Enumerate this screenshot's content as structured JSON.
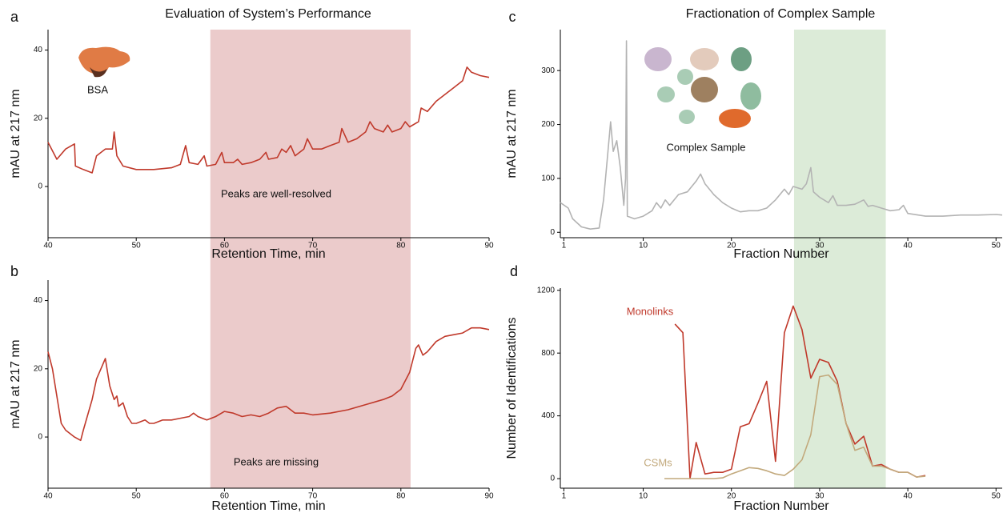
{
  "chart_data": [
    {
      "type": "line",
      "panel_label": "a",
      "title": "Evaluation of System’s Performance",
      "x_label": "Retention Time, min",
      "y_label": "mAU at 217 nm",
      "xlim": [
        40,
        90
      ],
      "xticks": [
        40,
        50,
        60,
        70,
        80,
        90
      ],
      "ylim": [
        -15,
        46
      ],
      "yticks": [
        0,
        20,
        40
      ],
      "highlight": [
        58.4,
        81.1
      ],
      "highlight_color": "#ebcbcb",
      "annotations": [
        "BSA",
        "Peaks are well-resolved"
      ],
      "series": [
        {
          "color": "#c0392b",
          "x": [
            40,
            41,
            42,
            43,
            43.1,
            44,
            45,
            45.5,
            46.5,
            47.3,
            47.5,
            47.8,
            48.5,
            50,
            52,
            54,
            55,
            55.6,
            56,
            57,
            57.7,
            58,
            59,
            59.7,
            60,
            61,
            61.5,
            62,
            63,
            64,
            64.7,
            65,
            66,
            66.5,
            67,
            67.5,
            68,
            69,
            69.4,
            70,
            71,
            72,
            73,
            73.3,
            74,
            75,
            76,
            76.5,
            77,
            78,
            78.5,
            79,
            80,
            80.5,
            81,
            82,
            82.3,
            83,
            84,
            85,
            86,
            87,
            87.5,
            88,
            89,
            90
          ],
          "values": [
            13,
            8,
            11,
            12.5,
            6,
            5,
            4,
            9,
            11,
            11,
            16,
            9,
            6,
            5,
            5,
            5.5,
            6.5,
            12,
            7,
            6.5,
            9,
            6,
            6.5,
            10,
            7,
            7,
            8,
            6.5,
            7,
            8,
            10,
            8,
            8.5,
            11,
            10,
            12,
            9,
            11,
            14,
            11,
            11,
            12,
            13,
            17,
            13,
            14,
            16,
            19,
            17,
            16,
            18,
            16,
            17,
            19,
            17.5,
            19,
            23,
            22,
            25,
            27,
            29,
            31,
            35,
            33.5,
            32.5,
            32
          ]
        }
      ]
    },
    {
      "type": "line",
      "panel_label": "b",
      "x_label": "Retention Time, min",
      "y_label": "mAU at 217 nm",
      "xlim": [
        40,
        90
      ],
      "xticks": [
        40,
        50,
        60,
        70,
        80,
        90
      ],
      "ylim": [
        -15,
        46
      ],
      "yticks": [
        0,
        20,
        40
      ],
      "highlight": [
        58.4,
        81.1
      ],
      "highlight_color": "#ebcbcb",
      "annotations": [
        "Peaks are missing"
      ],
      "series": [
        {
          "color": "#c0392b",
          "x": [
            40,
            40.5,
            41,
            41.5,
            42,
            43,
            43.7,
            44,
            45,
            45.5,
            46,
            46.5,
            47,
            47.5,
            47.8,
            48,
            48.5,
            49,
            49.5,
            50,
            51,
            51.5,
            52,
            53,
            54,
            55,
            56,
            56.5,
            57,
            58,
            59,
            60,
            61,
            62,
            63,
            64,
            65,
            66,
            67,
            68,
            69,
            70,
            72,
            74,
            76,
            78,
            79,
            80,
            81,
            81.7,
            82,
            82.5,
            83,
            84,
            85,
            86,
            87,
            88,
            89,
            90
          ],
          "values": [
            25,
            20,
            12,
            4,
            2,
            0,
            -1,
            2,
            11,
            17,
            20,
            23,
            15,
            11,
            12,
            9,
            10,
            6,
            4,
            4,
            5,
            4,
            4,
            5,
            5,
            5.5,
            6,
            7,
            6,
            5,
            6,
            7.5,
            7,
            6,
            6.5,
            6,
            7,
            8.5,
            9,
            7,
            7,
            6.5,
            7,
            8,
            9.5,
            11,
            12,
            14,
            19,
            26,
            27,
            24,
            25,
            28,
            29.5,
            30,
            30.5,
            32,
            32,
            31.5
          ]
        }
      ]
    },
    {
      "type": "line",
      "panel_label": "c",
      "title": "Fractionation of Complex Sample",
      "x_label": "Fraction Number",
      "y_label": "mAU at 217 nm",
      "xlim": [
        0.6,
        50.7
      ],
      "xticks": [
        1,
        10,
        20,
        30,
        40,
        50
      ],
      "ylim": [
        -10,
        376
      ],
      "yticks": [
        0,
        100,
        200,
        300
      ],
      "highlight": [
        27.1,
        37.5
      ],
      "highlight_color": "#dcebd8",
      "annotations": [
        "Complex Sample"
      ],
      "series": [
        {
          "color": "#b3b3b3",
          "x": [
            0.6,
            1.5,
            2,
            3,
            4,
            5,
            5.5,
            6,
            6.3,
            6.6,
            7,
            7.4,
            7.8,
            8,
            8.1,
            8.2,
            9,
            10,
            11,
            11.5,
            12,
            12.5,
            13,
            14,
            15,
            16,
            16.5,
            17,
            18,
            19,
            20,
            21,
            22,
            23,
            24,
            25,
            26,
            26.5,
            27,
            28,
            28.5,
            29,
            29.3,
            30,
            31,
            31.5,
            32,
            33,
            34,
            35,
            35.5,
            36,
            37,
            38,
            39,
            39.5,
            40,
            42,
            44,
            46,
            48,
            50,
            50.7
          ],
          "values": [
            55,
            45,
            25,
            10,
            6,
            8,
            60,
            150,
            205,
            150,
            170,
            120,
            50,
            100,
            355,
            30,
            25,
            30,
            40,
            55,
            45,
            60,
            50,
            70,
            75,
            95,
            108,
            90,
            70,
            55,
            45,
            38,
            40,
            40,
            45,
            60,
            80,
            70,
            85,
            80,
            90,
            120,
            75,
            65,
            55,
            68,
            50,
            50,
            52,
            60,
            48,
            50,
            45,
            40,
            42,
            50,
            35,
            30,
            30,
            32,
            32,
            33,
            32
          ]
        }
      ]
    },
    {
      "type": "line",
      "panel_label": "d",
      "x_label": "Fraction Number",
      "y_label": "Number of Identifications",
      "xlim": [
        0.6,
        50.7
      ],
      "xticks": [
        1,
        10,
        20,
        30,
        40,
        50
      ],
      "ylim": [
        -61,
        1214
      ],
      "yticks": [
        0,
        400,
        800,
        1200
      ],
      "highlight": [
        27.1,
        37.5
      ],
      "highlight_color": "#dcebd8",
      "series": [
        {
          "name": "Monolinks",
          "color": "#c0392b",
          "x": [
            13.6,
            14.5,
            15.3,
            16,
            17,
            18,
            19,
            20,
            21,
            22,
            23,
            24,
            25,
            26,
            27,
            28,
            29,
            30,
            31,
            32,
            33,
            34,
            35,
            36,
            37,
            38,
            39,
            40,
            41,
            42
          ],
          "values": [
            985,
            930,
            0,
            230,
            30,
            40,
            40,
            60,
            330,
            350,
            480,
            620,
            110,
            930,
            1100,
            950,
            640,
            760,
            740,
            620,
            350,
            220,
            270,
            80,
            90,
            60,
            40,
            40,
            10,
            20
          ]
        },
        {
          "name": "CSMs",
          "color": "#c2a97c",
          "x": [
            12.4,
            13,
            14,
            15,
            16,
            17,
            18,
            19,
            20,
            21,
            22,
            23,
            24,
            25,
            26,
            27,
            28,
            29,
            30,
            31,
            32,
            33,
            34,
            35,
            36,
            37,
            38,
            39,
            40,
            41,
            42
          ],
          "values": [
            0,
            0,
            0,
            0,
            0,
            0,
            0,
            5,
            30,
            50,
            70,
            65,
            50,
            30,
            20,
            60,
            120,
            280,
            650,
            660,
            600,
            350,
            180,
            200,
            80,
            80,
            60,
            40,
            40,
            10,
            15
          ]
        }
      ]
    }
  ]
}
